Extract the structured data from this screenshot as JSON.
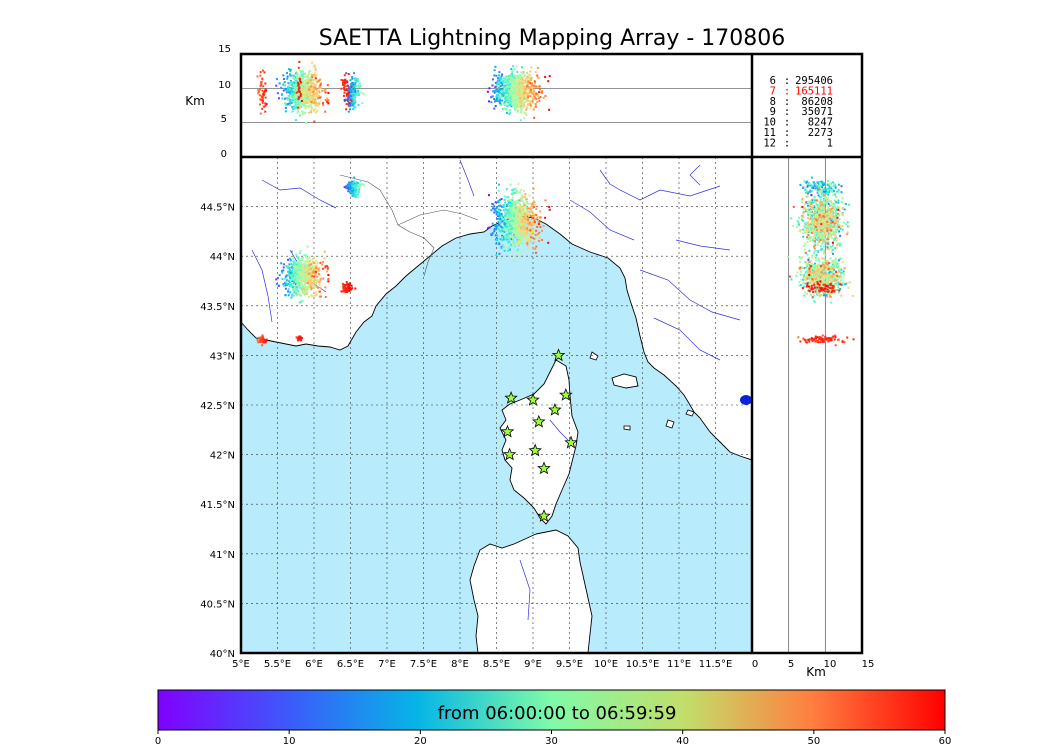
{
  "chart_data": {
    "type": "scatter",
    "title": "SAETTA Lightning Mapping Array - 170806",
    "map": {
      "lon_range": [
        5,
        12
      ],
      "lat_range": [
        40,
        45
      ],
      "lon_ticks": [
        "5°E",
        "5.5°E",
        "6°E",
        "6.5°E",
        "7°E",
        "7.5°E",
        "8°E",
        "8.5°E",
        "9°E",
        "9.5°E",
        "10°E",
        "10.5°E",
        "11°E",
        "11.5°E"
      ],
      "lat_ticks": [
        "40°N",
        "40.5°N",
        "41°N",
        "41.5°N",
        "42°N",
        "42.5°N",
        "43°N",
        "43.5°N",
        "44°N",
        "44.5°N"
      ],
      "stations": [
        {
          "lon": 9.35,
          "lat": 43.0
        },
        {
          "lon": 8.7,
          "lat": 42.57
        },
        {
          "lon": 9.0,
          "lat": 42.55
        },
        {
          "lon": 9.45,
          "lat": 42.6
        },
        {
          "lon": 9.3,
          "lat": 42.45
        },
        {
          "lon": 9.08,
          "lat": 42.33
        },
        {
          "lon": 8.65,
          "lat": 42.23
        },
        {
          "lon": 9.52,
          "lat": 42.12
        },
        {
          "lon": 8.68,
          "lat": 42.0
        },
        {
          "lon": 9.03,
          "lat": 42.04
        },
        {
          "lon": 9.15,
          "lat": 41.86
        },
        {
          "lon": 9.15,
          "lat": 41.38
        }
      ],
      "clusters": [
        {
          "lon": 5.85,
          "lat": 43.8,
          "slon": 0.22,
          "slat": 0.16,
          "t0": 0,
          "t1": 60,
          "n": 700
        },
        {
          "lon": 6.45,
          "lat": 43.68,
          "slon": 0.06,
          "slat": 0.04,
          "t0": 55,
          "t1": 60,
          "n": 60
        },
        {
          "lon": 6.55,
          "lat": 44.68,
          "slon": 0.08,
          "slat": 0.07,
          "t0": 0,
          "t1": 35,
          "n": 120
        },
        {
          "lon": 8.78,
          "lat": 44.35,
          "slon": 0.24,
          "slat": 0.22,
          "t0": 0,
          "t1": 60,
          "n": 900
        },
        {
          "lon": 5.3,
          "lat": 43.15,
          "slon": 0.05,
          "slat": 0.03,
          "t0": 50,
          "t1": 60,
          "n": 50
        },
        {
          "lon": 5.8,
          "lat": 43.17,
          "slon": 0.03,
          "slat": 0.02,
          "t0": 55,
          "t1": 60,
          "n": 25
        }
      ]
    },
    "alt_lon_panel": {
      "ylabel": "Km",
      "ylim": [
        0,
        15
      ],
      "yticks": [
        "0",
        "5",
        "10",
        "15"
      ]
    },
    "alt_lat_panel": {
      "xlabel": "Km",
      "xlim": [
        0,
        15
      ],
      "xticks": [
        "0",
        "5",
        "10",
        "15"
      ]
    },
    "station_counts": {
      "rows": [
        {
          "stations": "6",
          "count": "295406",
          "highlight": false
        },
        {
          "stations": "7",
          "count": "165111",
          "highlight": true
        },
        {
          "stations": "8",
          "count": "86208",
          "highlight": false
        },
        {
          "stations": "9",
          "count": "35071",
          "highlight": false
        },
        {
          "stations": "10",
          "count": "8247",
          "highlight": false
        },
        {
          "stations": "11",
          "count": "2273",
          "highlight": false
        },
        {
          "stations": "12",
          "count": "1",
          "highlight": false
        }
      ],
      "sep": ":"
    },
    "colorbar": {
      "label": "from 06:00:00 to 06:59:59",
      "range": [
        0,
        60
      ],
      "ticks": [
        "0",
        "10",
        "20",
        "30",
        "40",
        "50",
        "60"
      ],
      "colormap": "rainbow"
    }
  },
  "colors": {
    "sea": "#b8ecfc",
    "land": "#ffffff",
    "river": "#3030e0",
    "station": "#9cff3a",
    "highlight": "#ff0000"
  }
}
